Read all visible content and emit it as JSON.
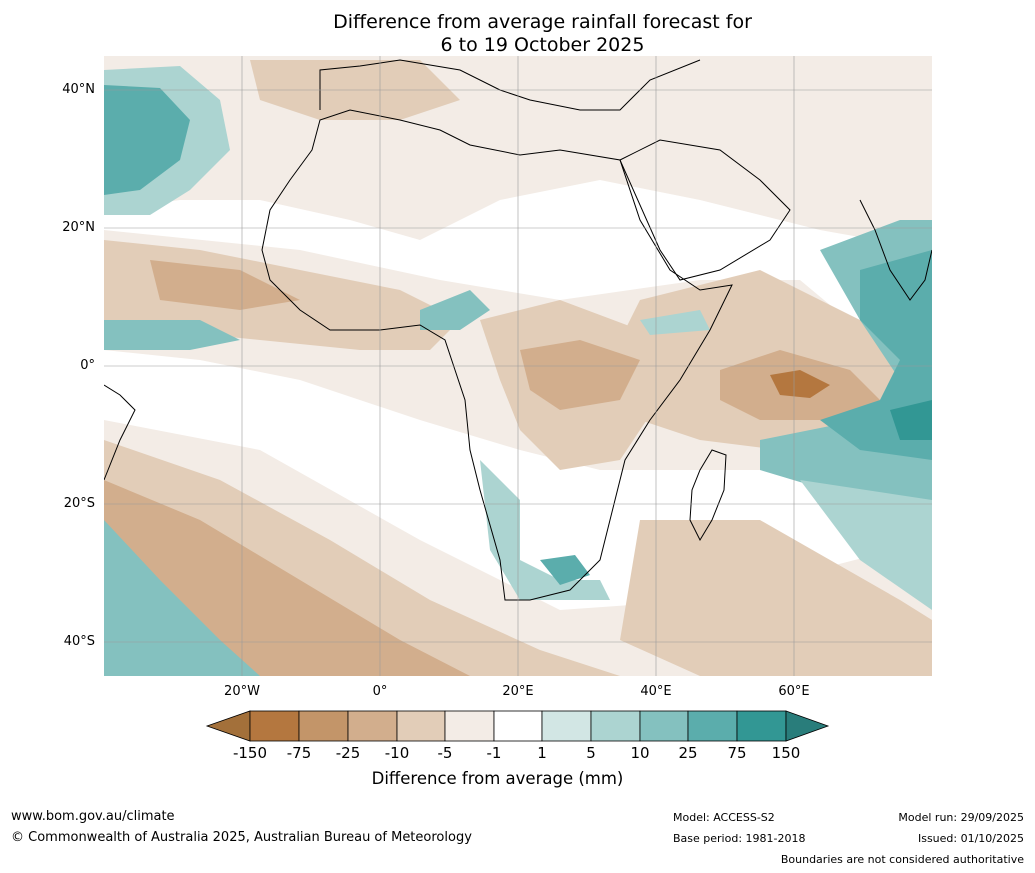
{
  "title_line1": "Difference from average rainfall forecast for",
  "title_line2": "6 to 19 October 2025",
  "lat_labels": [
    "40°N",
    "20°N",
    "0°",
    "20°S",
    "40°S"
  ],
  "lon_labels": [
    "20°W",
    "0°",
    "20°E",
    "40°E",
    "60°E"
  ],
  "colorbar": {
    "title": "Difference from average (mm)",
    "tick_labels": [
      "-150",
      "-75",
      "-25",
      "-10",
      "-5",
      "-1",
      "1",
      "5",
      "10",
      "25",
      "75",
      "150"
    ],
    "colors": [
      "#a3703a",
      "#b4773f",
      "#c39569",
      "#d2ae8d",
      "#e2cdb8",
      "#f3ece6",
      "#ffffff",
      "#d2e6e4",
      "#acd4d1",
      "#84c1bf",
      "#5badac",
      "#329794",
      "#297d7b"
    ]
  },
  "footer": {
    "website": "www.bom.gov.au/climate",
    "copyright": "© Commonwealth of Australia 2025, Australian Bureau of Meteorology",
    "model": "Model: ACCESS-S2",
    "base_period": "Base period: 1981-2018",
    "model_run": "Model run: 29/09/2025",
    "issued": "Issued: 01/10/2025",
    "disclaimer": "Boundaries are not considered authoritative"
  }
}
